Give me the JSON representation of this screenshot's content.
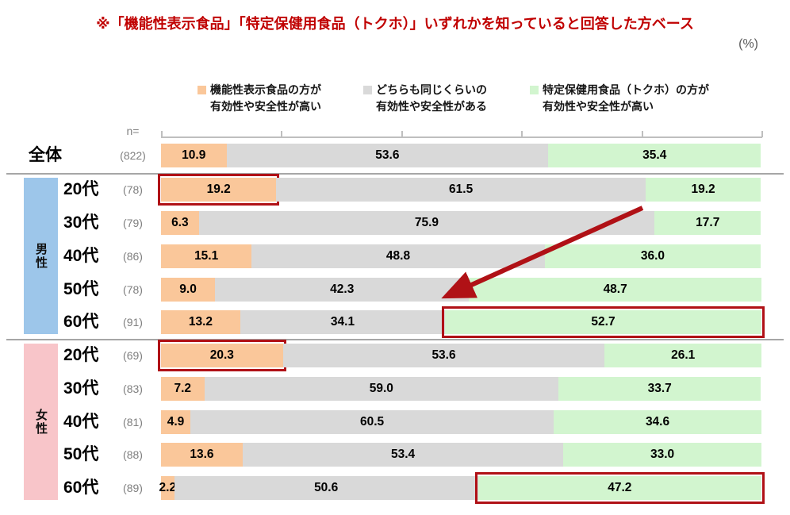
{
  "title": "※「機能性表示食品」「特定保健用食品（トクホ）」いずれかを知っていると回答した方ベース",
  "unit_label": "(%)",
  "n_header": "n=",
  "colors": {
    "title_text": "#C00000",
    "unit_text": "#595959",
    "n_text": "#7F7F7F",
    "orange": "#FAC79A",
    "gray": "#D9D9D9",
    "green": "#D2F5CF",
    "male_band": "#9DC6EA",
    "female_band": "#F8C5C9",
    "highlight_border": "#B01116",
    "arrow": "#B01116",
    "axis": "#BFBFBF",
    "separator": "#A6A6A6"
  },
  "legend": [
    {
      "label": "機能性表示食品の方が\n有効性や安全性が高い",
      "color_key": "orange"
    },
    {
      "label": "どちらも同じくらいの\n有効性や安全性がある",
      "color_key": "gray"
    },
    {
      "label": "特定保健用食品（トクホ）の方が\n有効性や安全性が高い",
      "color_key": "green"
    }
  ],
  "groups": [
    {
      "label": "男性",
      "color_key": "male_band"
    },
    {
      "label": "女性",
      "color_key": "female_band"
    }
  ],
  "chart_data": {
    "type": "bar",
    "orientation": "horizontal-stacked",
    "xlim": [
      0,
      100
    ],
    "x_ticks": [
      0,
      20,
      40,
      60,
      80,
      100
    ],
    "grid": false,
    "legend_position": "top",
    "series_names": [
      "機能性表示食品の方が有効性や安全性が高い",
      "どちらも同じくらいの有効性や安全性がある",
      "特定保健用食品（トクホ）の方が有効性や安全性が高い"
    ],
    "rows": [
      {
        "group": "",
        "label": "全体",
        "n": "(822)",
        "values": [
          10.9,
          53.6,
          35.4
        ],
        "highlight": null
      },
      {
        "group": "男性",
        "label": "20代",
        "n": "(78)",
        "values": [
          19.2,
          61.5,
          19.2
        ],
        "highlight": 0
      },
      {
        "group": "男性",
        "label": "30代",
        "n": "(79)",
        "values": [
          6.3,
          75.9,
          17.7
        ],
        "highlight": null
      },
      {
        "group": "男性",
        "label": "40代",
        "n": "(86)",
        "values": [
          15.1,
          48.8,
          36.0
        ],
        "highlight": null
      },
      {
        "group": "男性",
        "label": "50代",
        "n": "(78)",
        "values": [
          9.0,
          42.3,
          48.7
        ],
        "highlight": null
      },
      {
        "group": "男性",
        "label": "60代",
        "n": "(91)",
        "values": [
          13.2,
          34.1,
          52.7
        ],
        "highlight": 2
      },
      {
        "group": "女性",
        "label": "20代",
        "n": "(69)",
        "values": [
          20.3,
          53.6,
          26.1
        ],
        "highlight": 0
      },
      {
        "group": "女性",
        "label": "30代",
        "n": "(83)",
        "values": [
          7.2,
          59.0,
          33.7
        ],
        "highlight": null
      },
      {
        "group": "女性",
        "label": "40代",
        "n": "(81)",
        "values": [
          4.9,
          60.5,
          34.6
        ],
        "highlight": null
      },
      {
        "group": "女性",
        "label": "50代",
        "n": "(88)",
        "values": [
          13.6,
          53.4,
          33.0
        ],
        "highlight": null
      },
      {
        "group": "女性",
        "label": "60代",
        "n": "(89)",
        "values": [
          2.2,
          50.6,
          47.2
        ],
        "highlight": 2
      }
    ],
    "annotation_arrow": {
      "description": "dark red arrow pointing from upper right (male 20-30s rows) down-left toward the highlighted male 60s bar",
      "from_pct": 80,
      "to_pct": 48
    }
  }
}
